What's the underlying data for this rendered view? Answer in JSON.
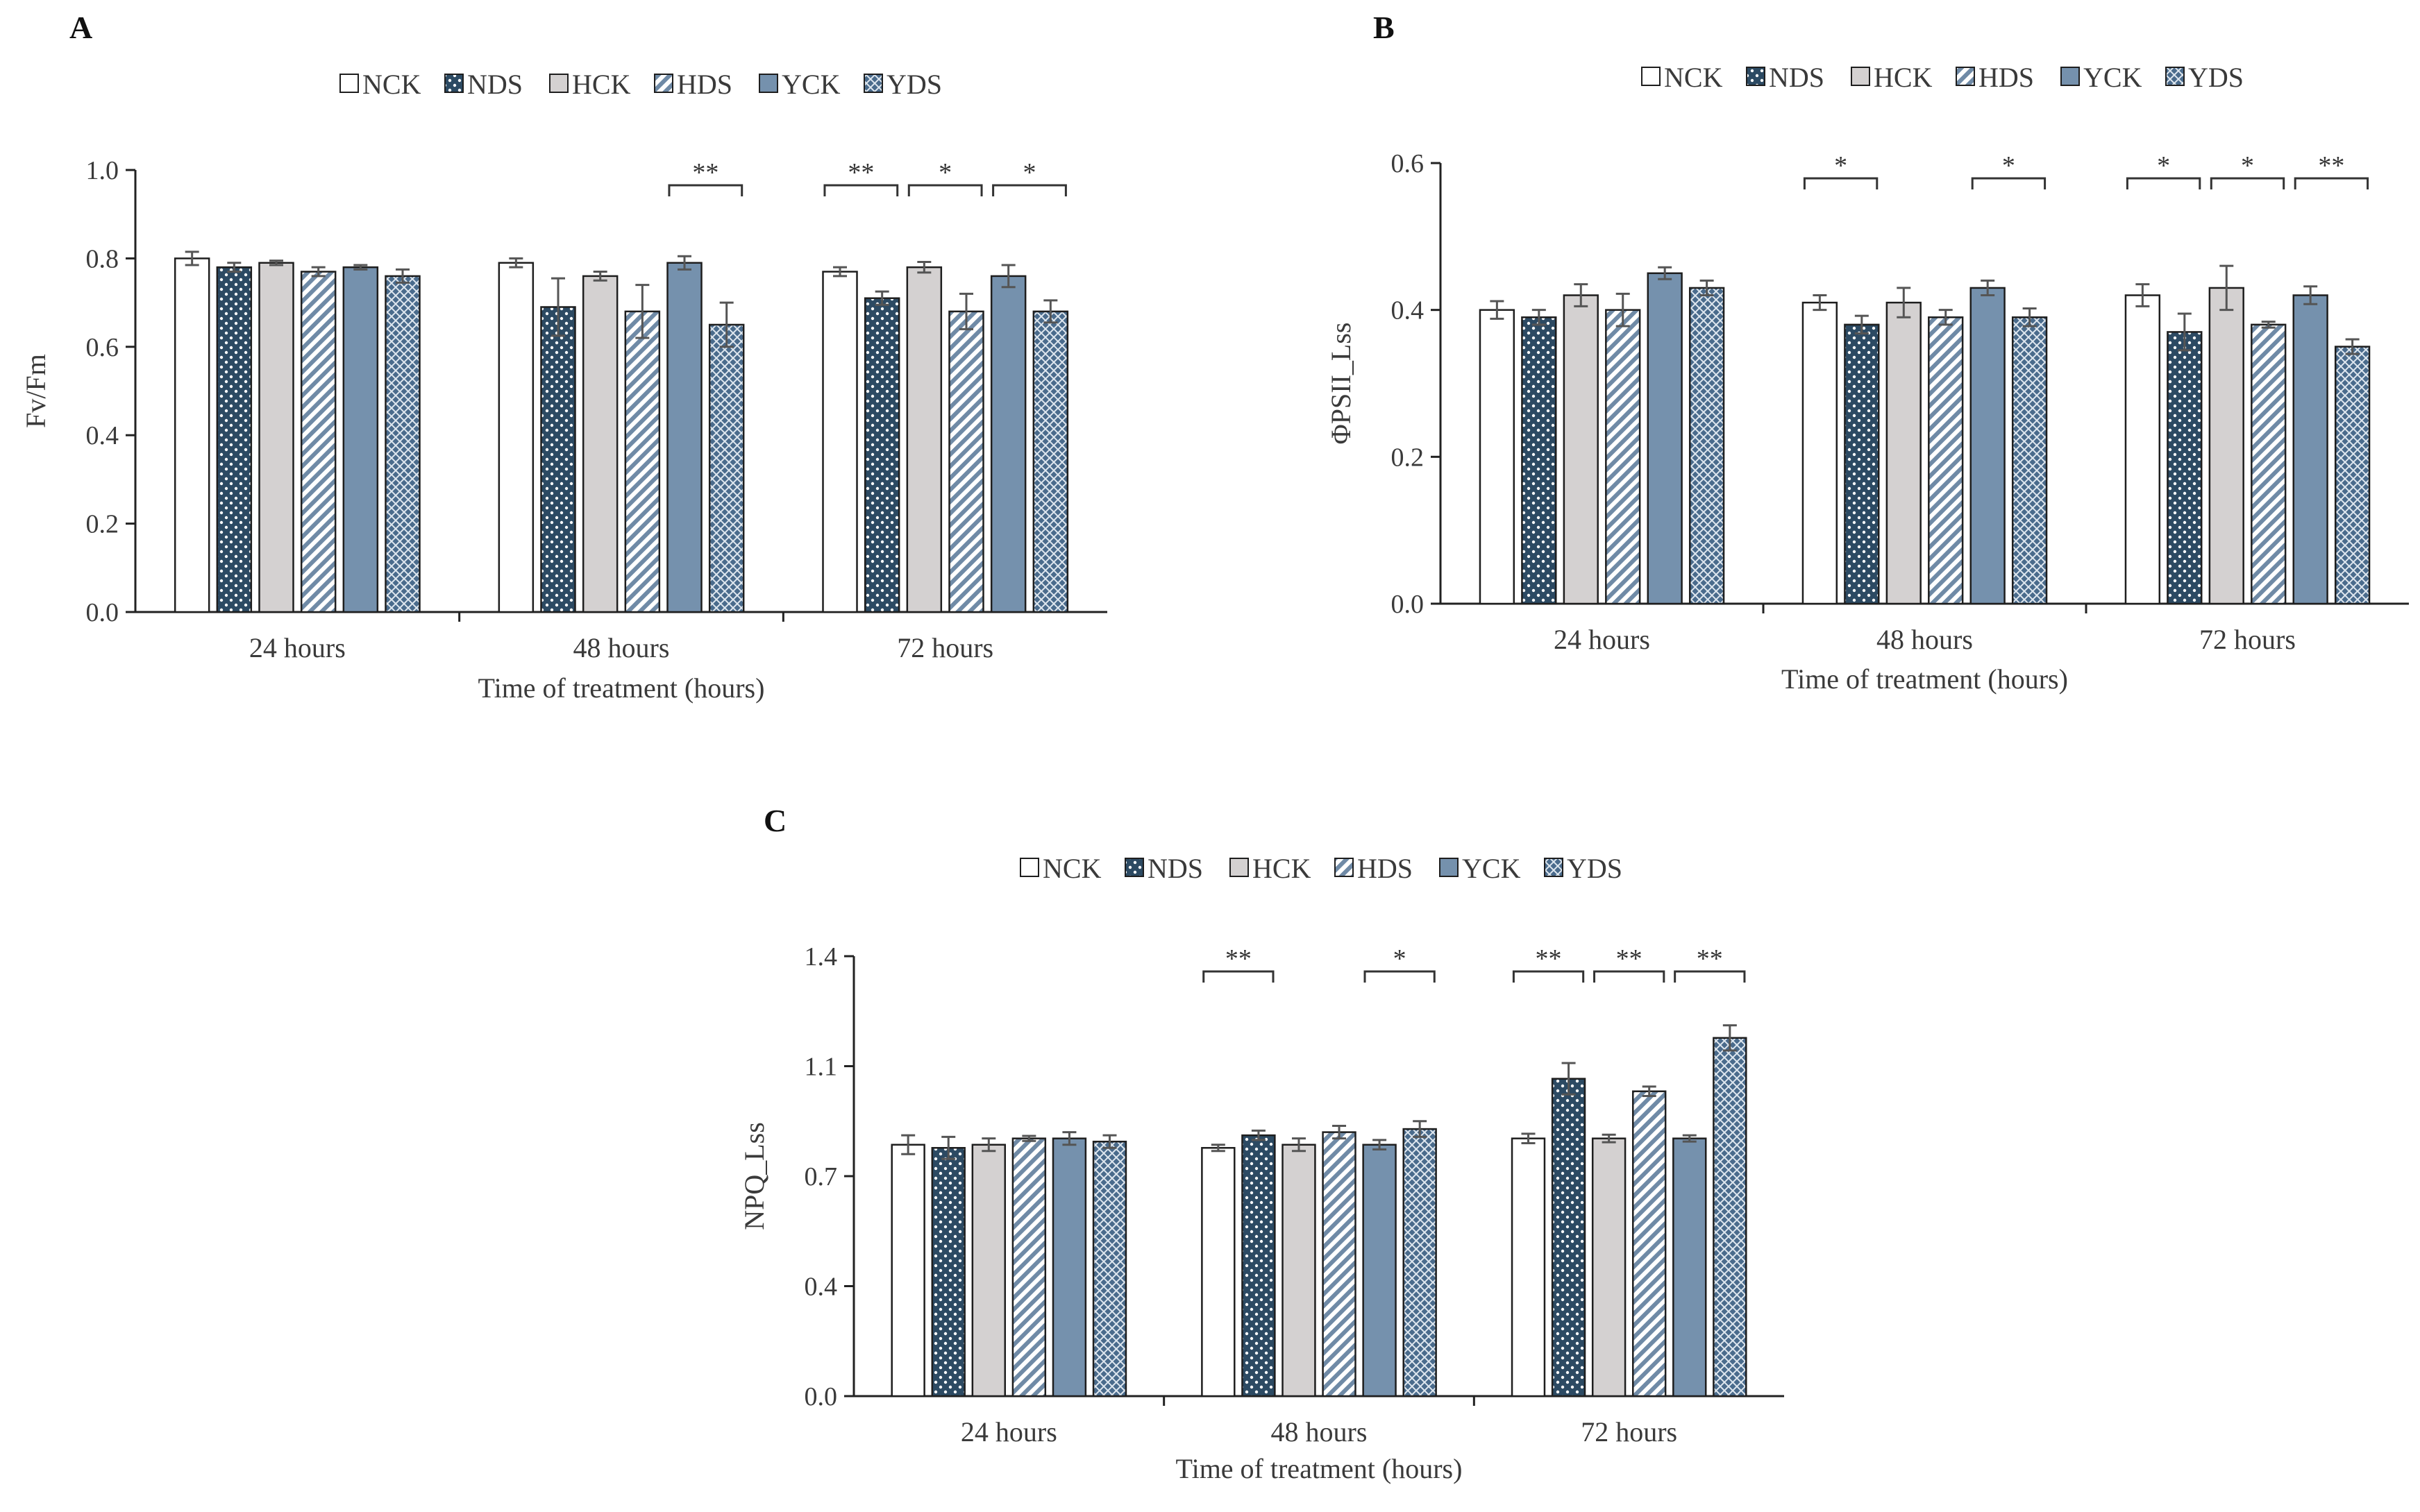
{
  "figure": {
    "legend_entries": [
      {
        "name": "NCK",
        "color": "#ffffff",
        "pattern": "none"
      },
      {
        "name": "NDS",
        "color": "#2c4a63",
        "pattern": "dots"
      },
      {
        "name": "HCK",
        "color": "#d4d1d1",
        "pattern": "none"
      },
      {
        "name": "HDS",
        "color": "#ffffff",
        "pattern": "diagonal-stripes"
      },
      {
        "name": "YCK",
        "color": "#7591ad",
        "pattern": "none"
      },
      {
        "name": "YDS",
        "color": "#4a6b8c",
        "pattern": "crosshatch"
      }
    ],
    "colors": {
      "axis": "#222222",
      "bar_outline": "#1e1e1e",
      "error_bar": "#555555",
      "text": "#3a3a3a"
    }
  },
  "chart_data": [
    {
      "panel": "A",
      "type": "bar",
      "categories": [
        "24 hours",
        "48 hours",
        "72 hours"
      ],
      "xlabel": "Time of treatment (hours)",
      "ylabel": "Fv/Fm",
      "ylim": [
        0,
        1.0
      ],
      "yticks": [
        "0.0",
        "0.2",
        "0.4",
        "0.6",
        "0.8",
        "1.0"
      ],
      "legend": "top-center",
      "grid": false,
      "series": [
        {
          "name": "NCK",
          "values": [
            0.8,
            0.79,
            0.77
          ],
          "errors": [
            0.015,
            0.01,
            0.01
          ]
        },
        {
          "name": "NDS",
          "values": [
            0.78,
            0.69,
            0.71
          ],
          "errors": [
            0.01,
            0.065,
            0.015
          ]
        },
        {
          "name": "HCK",
          "values": [
            0.79,
            0.76,
            0.78
          ],
          "errors": [
            0.005,
            0.01,
            0.012
          ]
        },
        {
          "name": "HDS",
          "values": [
            0.77,
            0.68,
            0.68
          ],
          "errors": [
            0.01,
            0.06,
            0.04
          ]
        },
        {
          "name": "YCK",
          "values": [
            0.78,
            0.79,
            0.76
          ],
          "errors": [
            0.005,
            0.015,
            0.025
          ]
        },
        {
          "name": "YDS",
          "values": [
            0.76,
            0.65,
            0.68
          ],
          "errors": [
            0.015,
            0.05,
            0.025
          ]
        }
      ],
      "significance": [
        {
          "category": 1,
          "label": "**",
          "from": "YCK",
          "to": "YDS"
        },
        {
          "category": 2,
          "label": "**",
          "from": "NCK",
          "to": "NDS"
        },
        {
          "category": 2,
          "label": "*",
          "from": "HCK",
          "to": "HDS"
        },
        {
          "category": 2,
          "label": "*",
          "from": "YCK",
          "to": "YDS"
        }
      ]
    },
    {
      "panel": "B",
      "type": "bar",
      "categories": [
        "24 hours",
        "48 hours",
        "72 hours"
      ],
      "xlabel": "Time of treatment (hours)",
      "ylabel": "ΦPSII_Lss",
      "ylim": [
        0,
        0.6
      ],
      "yticks": [
        "0.0",
        "0.2",
        "0.4",
        "0.6"
      ],
      "legend": "top-center",
      "grid": false,
      "series": [
        {
          "name": "NCK",
          "values": [
            0.4,
            0.41,
            0.42
          ],
          "errors": [
            0.012,
            0.01,
            0.015
          ]
        },
        {
          "name": "NDS",
          "values": [
            0.39,
            0.38,
            0.37
          ],
          "errors": [
            0.01,
            0.012,
            0.025
          ]
        },
        {
          "name": "HCK",
          "values": [
            0.42,
            0.41,
            0.43
          ],
          "errors": [
            0.015,
            0.02,
            0.03
          ]
        },
        {
          "name": "HDS",
          "values": [
            0.4,
            0.39,
            0.38
          ],
          "errors": [
            0.022,
            0.01,
            0.004
          ]
        },
        {
          "name": "YCK",
          "values": [
            0.45,
            0.43,
            0.42
          ],
          "errors": [
            0.008,
            0.01,
            0.012
          ]
        },
        {
          "name": "YDS",
          "values": [
            0.43,
            0.39,
            0.35
          ],
          "errors": [
            0.01,
            0.012,
            0.01
          ]
        }
      ],
      "significance": [
        {
          "category": 1,
          "label": "*",
          "from": "NCK",
          "to": "NDS"
        },
        {
          "category": 1,
          "label": "*",
          "from": "YCK",
          "to": "YDS"
        },
        {
          "category": 2,
          "label": "*",
          "from": "NCK",
          "to": "NDS"
        },
        {
          "category": 2,
          "label": "*",
          "from": "HCK",
          "to": "HDS"
        },
        {
          "category": 2,
          "label": "**",
          "from": "YCK",
          "to": "YDS"
        }
      ]
    },
    {
      "panel": "C",
      "type": "bar",
      "categories": [
        "24 hours",
        "48 hours",
        "72 hours"
      ],
      "xlabel": "Time of treatment (hours)",
      "ylabel": "NPQ_Lss",
      "ylim": [
        0,
        1.4
      ],
      "yticks": [
        "0.0",
        "0.4",
        "0.7",
        "1.1",
        "1.4"
      ],
      "legend": "top-center",
      "grid": false,
      "series": [
        {
          "name": "NCK",
          "values": [
            0.8,
            0.79,
            0.82
          ],
          "errors": [
            0.03,
            0.01,
            0.015
          ]
        },
        {
          "name": "NDS",
          "values": [
            0.79,
            0.83,
            1.01
          ],
          "errors": [
            0.035,
            0.015,
            0.05
          ]
        },
        {
          "name": "HCK",
          "values": [
            0.8,
            0.8,
            0.82
          ],
          "errors": [
            0.02,
            0.02,
            0.012
          ]
        },
        {
          "name": "HDS",
          "values": [
            0.82,
            0.84,
            0.97
          ],
          "errors": [
            0.008,
            0.02,
            0.015
          ]
        },
        {
          "name": "YCK",
          "values": [
            0.82,
            0.8,
            0.82
          ],
          "errors": [
            0.02,
            0.015,
            0.01
          ]
        },
        {
          "name": "YDS",
          "values": [
            0.81,
            0.85,
            1.14
          ],
          "errors": [
            0.02,
            0.025,
            0.04
          ]
        }
      ],
      "significance": [
        {
          "category": 1,
          "label": "**",
          "from": "NCK",
          "to": "NDS"
        },
        {
          "category": 1,
          "label": "*",
          "from": "YCK",
          "to": "YDS"
        },
        {
          "category": 2,
          "label": "**",
          "from": "NCK",
          "to": "NDS"
        },
        {
          "category": 2,
          "label": "**",
          "from": "HCK",
          "to": "HDS"
        },
        {
          "category": 2,
          "label": "**",
          "from": "YCK",
          "to": "YDS"
        }
      ]
    }
  ]
}
